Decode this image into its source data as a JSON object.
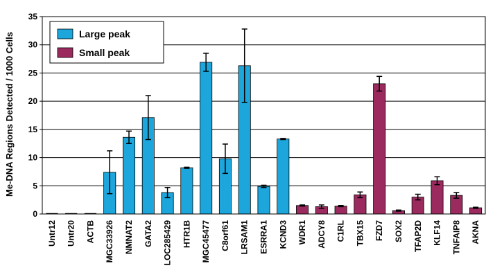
{
  "chart_data": {
    "type": "bar",
    "ylabel": "Me-DNA Regions Detected / 1000 Cells",
    "xlabel": "",
    "ylim": [
      0,
      35
    ],
    "yticks": [
      0,
      5,
      10,
      15,
      20,
      25,
      30,
      35
    ],
    "grid": "horizontal",
    "legend_position": "top-left",
    "colors": {
      "large": "#1ca6dc",
      "small": "#9b2a5f"
    },
    "categories": [
      "Untr12",
      "Untr20",
      "ACTB",
      "MGC33926",
      "NMNAT2",
      "GATA2",
      "LOC285429",
      "HTR1B",
      "MGC45477",
      "C8orf61",
      "LRSAM1",
      "ESRRA1",
      "KCND3",
      "WDR1",
      "ADCY8",
      "C1RL",
      "TBX15",
      "FZD7",
      "SOX2",
      "TFAP2D",
      "KLF14",
      "TNFAIP8",
      "AKNA"
    ],
    "values": [
      0,
      0,
      0,
      7.4,
      13.6,
      17.1,
      3.8,
      8.2,
      26.9,
      9.8,
      26.3,
      4.9,
      13.3,
      1.5,
      1.3,
      1.4,
      3.4,
      23.1,
      0.6,
      3.0,
      5.9,
      3.3,
      1.1
    ],
    "errors": [
      0,
      0,
      0,
      3.8,
      1.1,
      3.9,
      0.9,
      0.1,
      1.6,
      2.6,
      6.5,
      0.2,
      0.1,
      0.1,
      0.3,
      0.1,
      0.5,
      1.3,
      0.1,
      0.5,
      0.7,
      0.5,
      0.1
    ],
    "groups": [
      "none",
      "none",
      "none",
      "large",
      "large",
      "large",
      "large",
      "large",
      "large",
      "large",
      "large",
      "large",
      "large",
      "small",
      "small",
      "small",
      "small",
      "small",
      "small",
      "small",
      "small",
      "small",
      "small"
    ],
    "series": [
      {
        "name": "Large peak",
        "key": "large"
      },
      {
        "name": "Small peak",
        "key": "small"
      }
    ]
  }
}
